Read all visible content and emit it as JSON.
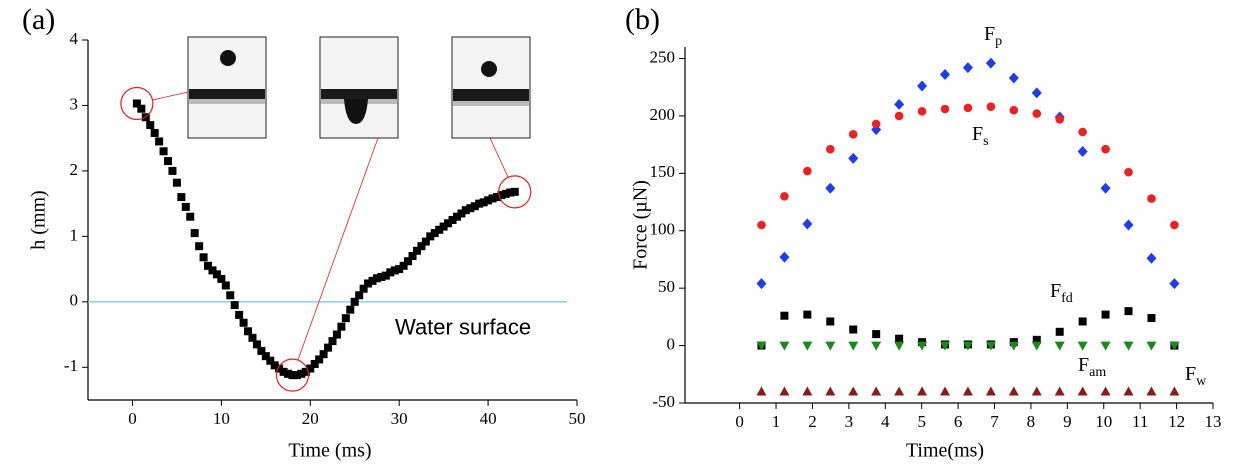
{
  "chart_data": [
    {
      "type": "scatter",
      "panel_label": "(a)",
      "x_label": "Time (ms)",
      "y_label": "h (mm)",
      "xlim": [
        -5,
        50
      ],
      "ylim": [
        -1.5,
        4
      ],
      "xticks": [
        0,
        10,
        20,
        30,
        40,
        50
      ],
      "yticks": [
        -1,
        0,
        1,
        2,
        3,
        4
      ],
      "reference_line": {
        "y": 0,
        "color": "#7fd3e6",
        "label": "Water surface"
      },
      "highlight_color": "#e02020",
      "series": [
        {
          "marker": "square",
          "color": "#000000",
          "x": [
            0.5,
            1,
            1.5,
            2,
            2.5,
            3,
            3.5,
            4,
            4.5,
            5,
            5.5,
            6,
            6.5,
            7,
            7.5,
            8,
            8.5,
            9,
            9.5,
            10,
            10.5,
            11,
            11.5,
            12,
            12.5,
            13,
            13.5,
            14,
            14.5,
            15,
            15.5,
            16,
            16.5,
            17,
            17.5,
            18,
            18.5,
            19,
            19.5,
            20,
            20.5,
            21,
            21.5,
            22,
            22.5,
            23,
            23.5,
            24,
            24.5,
            25,
            25.5,
            26,
            26.5,
            27,
            27.5,
            28,
            28.5,
            29,
            29.5,
            30,
            30.5,
            31,
            31.5,
            32,
            32.5,
            33,
            33.5,
            34,
            34.5,
            35,
            35.5,
            36,
            36.5,
            37,
            37.5,
            38,
            38.5,
            39,
            39.5,
            40,
            40.5,
            41,
            41.5,
            42,
            42.5,
            43
          ],
          "values": [
            3.03,
            2.95,
            2.82,
            2.7,
            2.58,
            2.45,
            2.3,
            2.15,
            2.0,
            1.82,
            1.6,
            1.45,
            1.3,
            1.05,
            0.85,
            0.68,
            0.55,
            0.48,
            0.42,
            0.35,
            0.25,
            0.1,
            -0.05,
            -0.2,
            -0.32,
            -0.45,
            -0.55,
            -0.65,
            -0.75,
            -0.83,
            -0.9,
            -0.97,
            -1.02,
            -1.07,
            -1.1,
            -1.12,
            -1.12,
            -1.1,
            -1.07,
            -1.02,
            -0.95,
            -0.88,
            -0.8,
            -0.7,
            -0.6,
            -0.5,
            -0.38,
            -0.25,
            -0.12,
            0.0,
            0.1,
            0.2,
            0.28,
            0.32,
            0.36,
            0.38,
            0.4,
            0.45,
            0.48,
            0.5,
            0.55,
            0.62,
            0.7,
            0.78,
            0.85,
            0.92,
            1.0,
            1.05,
            1.1,
            1.15,
            1.2,
            1.25,
            1.3,
            1.35,
            1.4,
            1.43,
            1.46,
            1.5,
            1.52,
            1.55,
            1.58,
            1.6,
            1.63,
            1.65,
            1.67,
            1.68
          ]
        }
      ]
    },
    {
      "type": "scatter",
      "panel_label": "(b)",
      "x_label": "Time(ms)",
      "y_label": "Force (µN)",
      "xlim": [
        -1.5,
        13
      ],
      "ylim": [
        -50,
        260
      ],
      "xticks": [
        0,
        1,
        2,
        3,
        4,
        5,
        6,
        7,
        8,
        9,
        10,
        11,
        12,
        13
      ],
      "yticks": [
        -50,
        0,
        50,
        100,
        150,
        200,
        250
      ],
      "series": [
        {
          "marker": "diamond",
          "color": "#1f3cf0",
          "label": {
            "main": "F",
            "sub": "p"
          },
          "x": [
            0.6,
            1.23,
            1.86,
            2.49,
            3.12,
            3.75,
            4.38,
            5.01,
            5.64,
            6.27,
            6.9,
            7.53,
            8.16,
            8.79,
            9.42,
            10.05,
            10.68,
            11.31,
            11.94
          ],
          "values": [
            54,
            77,
            106,
            137,
            163,
            188,
            210,
            226,
            236,
            242,
            246,
            233,
            220,
            199,
            169,
            137,
            105,
            76,
            54
          ]
        },
        {
          "marker": "circle",
          "color": "#f02020",
          "label": {
            "main": "F",
            "sub": "s"
          },
          "x": [
            0.6,
            1.23,
            1.86,
            2.49,
            3.12,
            3.75,
            4.38,
            5.01,
            5.64,
            6.27,
            6.9,
            7.53,
            8.16,
            8.79,
            9.42,
            10.05,
            10.68,
            11.31,
            11.94
          ],
          "values": [
            105,
            130,
            152,
            171,
            184,
            193,
            200,
            204,
            206,
            207,
            208,
            205,
            202,
            197,
            186,
            171,
            151,
            128,
            105
          ]
        },
        {
          "marker": "square",
          "color": "#000000",
          "label": {
            "main": "F",
            "sub": "fd"
          },
          "x": [
            0.6,
            1.23,
            1.86,
            2.49,
            3.12,
            3.75,
            4.38,
            5.01,
            5.64,
            6.27,
            6.9,
            7.53,
            8.16,
            8.79,
            9.42,
            10.05,
            10.68,
            11.31,
            11.94
          ],
          "values": [
            0,
            26,
            27,
            21,
            14,
            10,
            6,
            3,
            1,
            1,
            1,
            3,
            5,
            12,
            21,
            27,
            30,
            24,
            0
          ]
        },
        {
          "marker": "triangle-down",
          "color": "#1a8a1a",
          "label": {
            "main": "F",
            "sub": "am"
          },
          "x": [
            0.6,
            1.23,
            1.86,
            2.49,
            3.12,
            3.75,
            4.38,
            5.01,
            5.64,
            6.27,
            6.9,
            7.53,
            8.16,
            8.79,
            9.42,
            10.05,
            10.68,
            11.31,
            11.94
          ],
          "values": [
            0,
            0,
            0,
            0,
            0,
            0,
            0,
            0,
            0,
            0,
            0,
            0,
            0,
            0,
            0,
            0,
            0,
            0,
            0
          ]
        },
        {
          "marker": "triangle-up",
          "color": "#8b1a1a",
          "label": {
            "main": "F",
            "sub": "w"
          },
          "x": [
            0.6,
            1.23,
            1.86,
            2.49,
            3.12,
            3.75,
            4.38,
            5.01,
            5.64,
            6.27,
            6.9,
            7.53,
            8.16,
            8.79,
            9.42,
            10.05,
            10.68,
            11.31,
            11.94
          ],
          "values": [
            -40,
            -40,
            -40,
            -40,
            -40,
            -40,
            -40,
            -40,
            -40,
            -40,
            -40,
            -40,
            -40,
            -40,
            -40,
            -40,
            -40,
            -40,
            -40
          ]
        }
      ]
    }
  ]
}
